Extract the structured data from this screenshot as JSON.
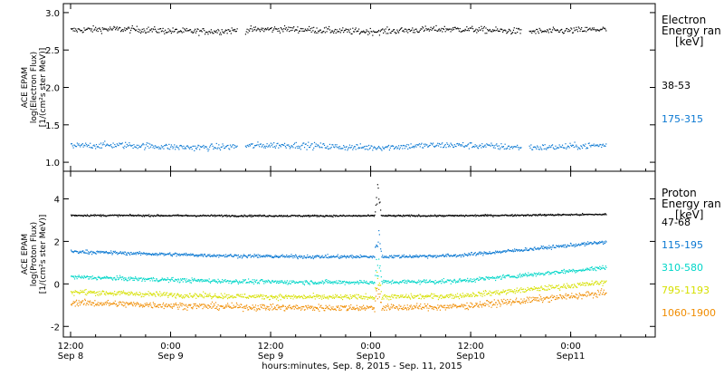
{
  "chart_data": [
    {
      "type": "scatter",
      "ylabel_lines": [
        "ACE EPAM",
        "log(Electron Flux)",
        "[1/(cm²s ster MeV)]"
      ],
      "ylim": [
        0.88,
        3.12
      ],
      "yticks": [
        1.0,
        1.5,
        2.0,
        2.5,
        3.0
      ],
      "ytick_labels": [
        "1.0",
        "1.5",
        "2.0",
        "2.5",
        "3.0"
      ],
      "legend_title_lines": [
        "Electron",
        "Energy ran",
        "[keV]"
      ],
      "series": [
        {
          "name": "38-53",
          "color": "#000000",
          "mean": 2.77,
          "spread": 0.07,
          "start": 0.0,
          "end": 0.862,
          "gaps": [
            [
              0.31,
              0.325
            ],
            [
              0.84,
              0.855
            ]
          ],
          "max": 2.9
        },
        {
          "name": "175-315",
          "color": "#0a78d2",
          "mean": 1.22,
          "spread": 0.07,
          "start": 0.0,
          "end": 0.862,
          "gaps": [
            [
              0.31,
              0.325
            ],
            [
              0.84,
              0.855
            ]
          ],
          "max": 1.4
        }
      ]
    },
    {
      "type": "scatter",
      "ylabel_lines": [
        "ACE EPAM",
        "log(Proton Flux)",
        "[1/(cm²s ster MeV)]"
      ],
      "ylim": [
        -2.5,
        5.3
      ],
      "yticks": [
        -2,
        0,
        2,
        4
      ],
      "ytick_labels": [
        "-2",
        "0",
        "2",
        "4"
      ],
      "legend_title_lines": [
        "Proton",
        "Energy ran",
        "[keV]"
      ],
      "series": [
        {
          "name": "47-68",
          "color": "#000000",
          "base": 3.25,
          "spread": 0.04,
          "spike_peak": 5.0
        },
        {
          "name": "115-195",
          "color": "#0a78d2",
          "base": 1.55,
          "spread": 0.08,
          "spike_peak": 3.3
        },
        {
          "name": "310-580",
          "color": "#00d6c8",
          "base": 0.35,
          "spread": 0.1,
          "spike_peak": 2.0
        },
        {
          "name": "795-1193",
          "color": "#d6e000",
          "base": -0.35,
          "spread": 0.12,
          "spike_peak": 1.2
        },
        {
          "name": "1060-1900",
          "color": "#f08c00",
          "base": -0.85,
          "spread": 0.15,
          "spike_peak": 0.3
        }
      ]
    }
  ],
  "x_axis": {
    "ticks": [
      {
        "pos": 0.0,
        "line1": "12:00",
        "line2": "Sep 8"
      },
      {
        "pos": 0.18,
        "line1": "0:00",
        "line2": "Sep 9"
      },
      {
        "pos": 0.36,
        "line1": "12:00",
        "line2": "Sep 9"
      },
      {
        "pos": 0.54,
        "line1": "0:00",
        "line2": "Sep10"
      },
      {
        "pos": 0.72,
        "line1": "12:00",
        "line2": "Sep10"
      },
      {
        "pos": 0.9,
        "line1": "0:00",
        "line2": "Sep11"
      }
    ],
    "title": "hours:minutes, Sep.  8, 2015 - Sep. 11, 2015"
  }
}
